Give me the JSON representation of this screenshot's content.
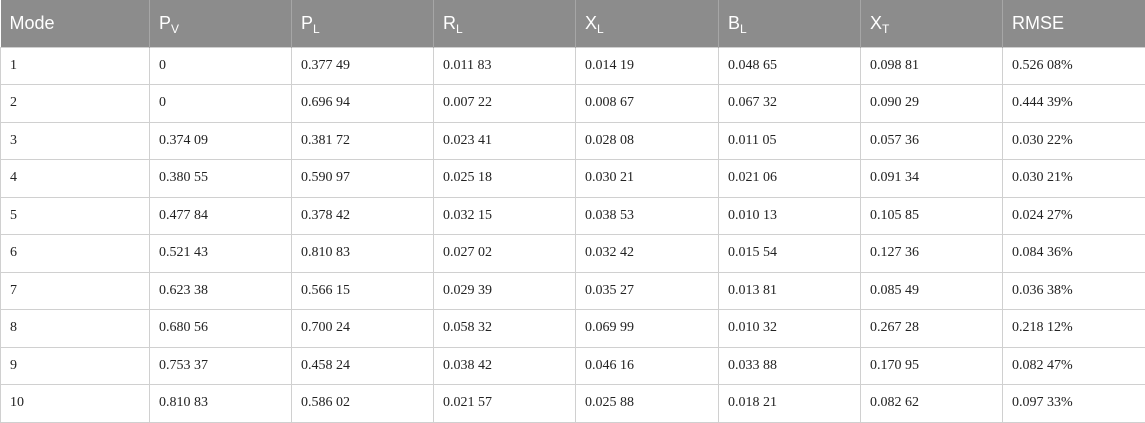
{
  "table": {
    "headers": [
      {
        "main": "Mode",
        "sub": ""
      },
      {
        "main": "P",
        "sub": "V"
      },
      {
        "main": "P",
        "sub": "L"
      },
      {
        "main": "R",
        "sub": "L"
      },
      {
        "main": "X",
        "sub": "L"
      },
      {
        "main": "B",
        "sub": "L"
      },
      {
        "main": "X",
        "sub": "T"
      },
      {
        "main": "RMSE",
        "sub": ""
      }
    ],
    "rows": [
      [
        "1",
        "0",
        "0.377 49",
        "0.011 83",
        "0.014 19",
        "0.048 65",
        "0.098 81",
        "0.526 08%"
      ],
      [
        "2",
        "0",
        "0.696 94",
        "0.007 22",
        "0.008 67",
        "0.067 32",
        "0.090 29",
        "0.444 39%"
      ],
      [
        "3",
        "0.374 09",
        "0.381 72",
        "0.023 41",
        "0.028 08",
        "0.011 05",
        "0.057 36",
        "0.030 22%"
      ],
      [
        "4",
        "0.380 55",
        "0.590 97",
        "0.025 18",
        "0.030 21",
        "0.021 06",
        "0.091 34",
        "0.030 21%"
      ],
      [
        "5",
        "0.477 84",
        "0.378 42",
        "0.032 15",
        "0.038 53",
        "0.010 13",
        "0.105 85",
        "0.024 27%"
      ],
      [
        "6",
        "0.521 43",
        "0.810 83",
        "0.027 02",
        "0.032 42",
        "0.015 54",
        "0.127 36",
        "0.084 36%"
      ],
      [
        "7",
        "0.623 38",
        "0.566 15",
        "0.029 39",
        "0.035 27",
        "0.013 81",
        "0.085 49",
        "0.036 38%"
      ],
      [
        "8",
        "0.680 56",
        "0.700 24",
        "0.058 32",
        "0.069 99",
        "0.010 32",
        "0.267 28",
        "0.218 12%"
      ],
      [
        "9",
        "0.753 37",
        "0.458 24",
        "0.038 42",
        "0.046 16",
        "0.033 88",
        "0.170 95",
        "0.082 47%"
      ],
      [
        "10",
        "0.810 83",
        "0.586 02",
        "0.021 57",
        "0.025 88",
        "0.018 21",
        "0.082 62",
        "0.097 33%"
      ]
    ]
  }
}
